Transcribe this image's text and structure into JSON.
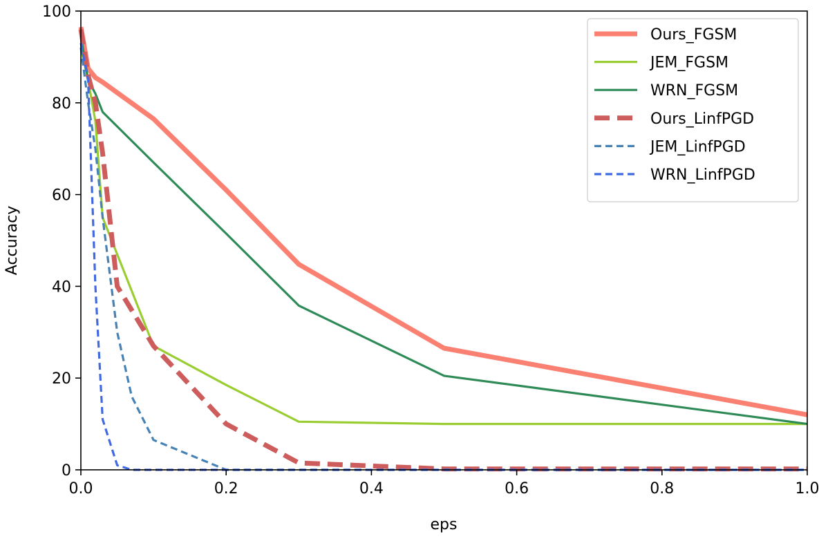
{
  "chart_data": {
    "type": "line",
    "title": "",
    "xlabel": "eps",
    "ylabel": "Accuracy",
    "xlim": [
      0.0,
      1.0
    ],
    "ylim": [
      0,
      100
    ],
    "xticks": [
      "0.0",
      "0.2",
      "0.4",
      "0.6",
      "0.8",
      "1.0"
    ],
    "yticks": [
      "0",
      "20",
      "40",
      "60",
      "80",
      "100"
    ],
    "grid": false,
    "legend_position": "top-right",
    "series": [
      {
        "name": "Ours_FGSM",
        "color": "#FA8072",
        "line_style": "solid",
        "line_weight": "thick",
        "points": [
          [
            0,
            96.5
          ],
          [
            0.01,
            87.5
          ],
          [
            0.02,
            85.5
          ],
          [
            0.03,
            84.5
          ],
          [
            0.1,
            76.5
          ],
          [
            0.2,
            61
          ],
          [
            0.3,
            44.8
          ],
          [
            0.5,
            26.5
          ],
          [
            1.0,
            12
          ]
        ]
      },
      {
        "name": "JEM_FGSM",
        "color": "#9ACD32",
        "line_style": "solid",
        "line_weight": "normal",
        "points": [
          [
            0,
            92
          ],
          [
            0.01,
            85
          ],
          [
            0.02,
            76
          ],
          [
            0.03,
            55
          ],
          [
            0.1,
            27
          ],
          [
            0.2,
            18.5
          ],
          [
            0.3,
            10.5
          ],
          [
            0.5,
            10
          ],
          [
            1.0,
            10
          ]
        ]
      },
      {
        "name": "WRN_FGSM",
        "color": "#2E8B57",
        "line_style": "solid",
        "line_weight": "normal",
        "points": [
          [
            0,
            94.5
          ],
          [
            0.01,
            85
          ],
          [
            0.02,
            82
          ],
          [
            0.03,
            78
          ],
          [
            0.1,
            67
          ],
          [
            0.2,
            51.5
          ],
          [
            0.3,
            35.8
          ],
          [
            0.5,
            20.5
          ],
          [
            1.0,
            10
          ]
        ]
      },
      {
        "name": "Ours_LinfPGD",
        "color": "#CD5C5C",
        "line_style": "dashed",
        "line_weight": "thick",
        "points": [
          [
            0,
            96
          ],
          [
            0.01,
            86
          ],
          [
            0.02,
            80
          ],
          [
            0.03,
            69
          ],
          [
            0.05,
            40
          ],
          [
            0.1,
            27
          ],
          [
            0.2,
            10
          ],
          [
            0.3,
            1.5
          ],
          [
            0.5,
            0.2
          ],
          [
            1.0,
            0.2
          ]
        ]
      },
      {
        "name": "JEM_LinfPGD",
        "color": "#4682B4",
        "line_style": "dashed",
        "line_weight": "normal",
        "points": [
          [
            0,
            92
          ],
          [
            0.01,
            80
          ],
          [
            0.02,
            70
          ],
          [
            0.03,
            55
          ],
          [
            0.05,
            30
          ],
          [
            0.07,
            16
          ],
          [
            0.1,
            6.5
          ],
          [
            0.2,
            0
          ],
          [
            0.5,
            0
          ],
          [
            1.0,
            0
          ]
        ]
      },
      {
        "name": "WRN_LinfPGD",
        "color": "#4169E1",
        "line_style": "dashed",
        "line_weight": "normal",
        "points": [
          [
            0,
            93
          ],
          [
            0.01,
            85
          ],
          [
            0.02,
            40
          ],
          [
            0.03,
            11
          ],
          [
            0.05,
            1
          ],
          [
            0.07,
            0
          ],
          [
            0.2,
            0
          ],
          [
            0.5,
            0
          ],
          [
            1.0,
            0
          ]
        ]
      }
    ]
  }
}
